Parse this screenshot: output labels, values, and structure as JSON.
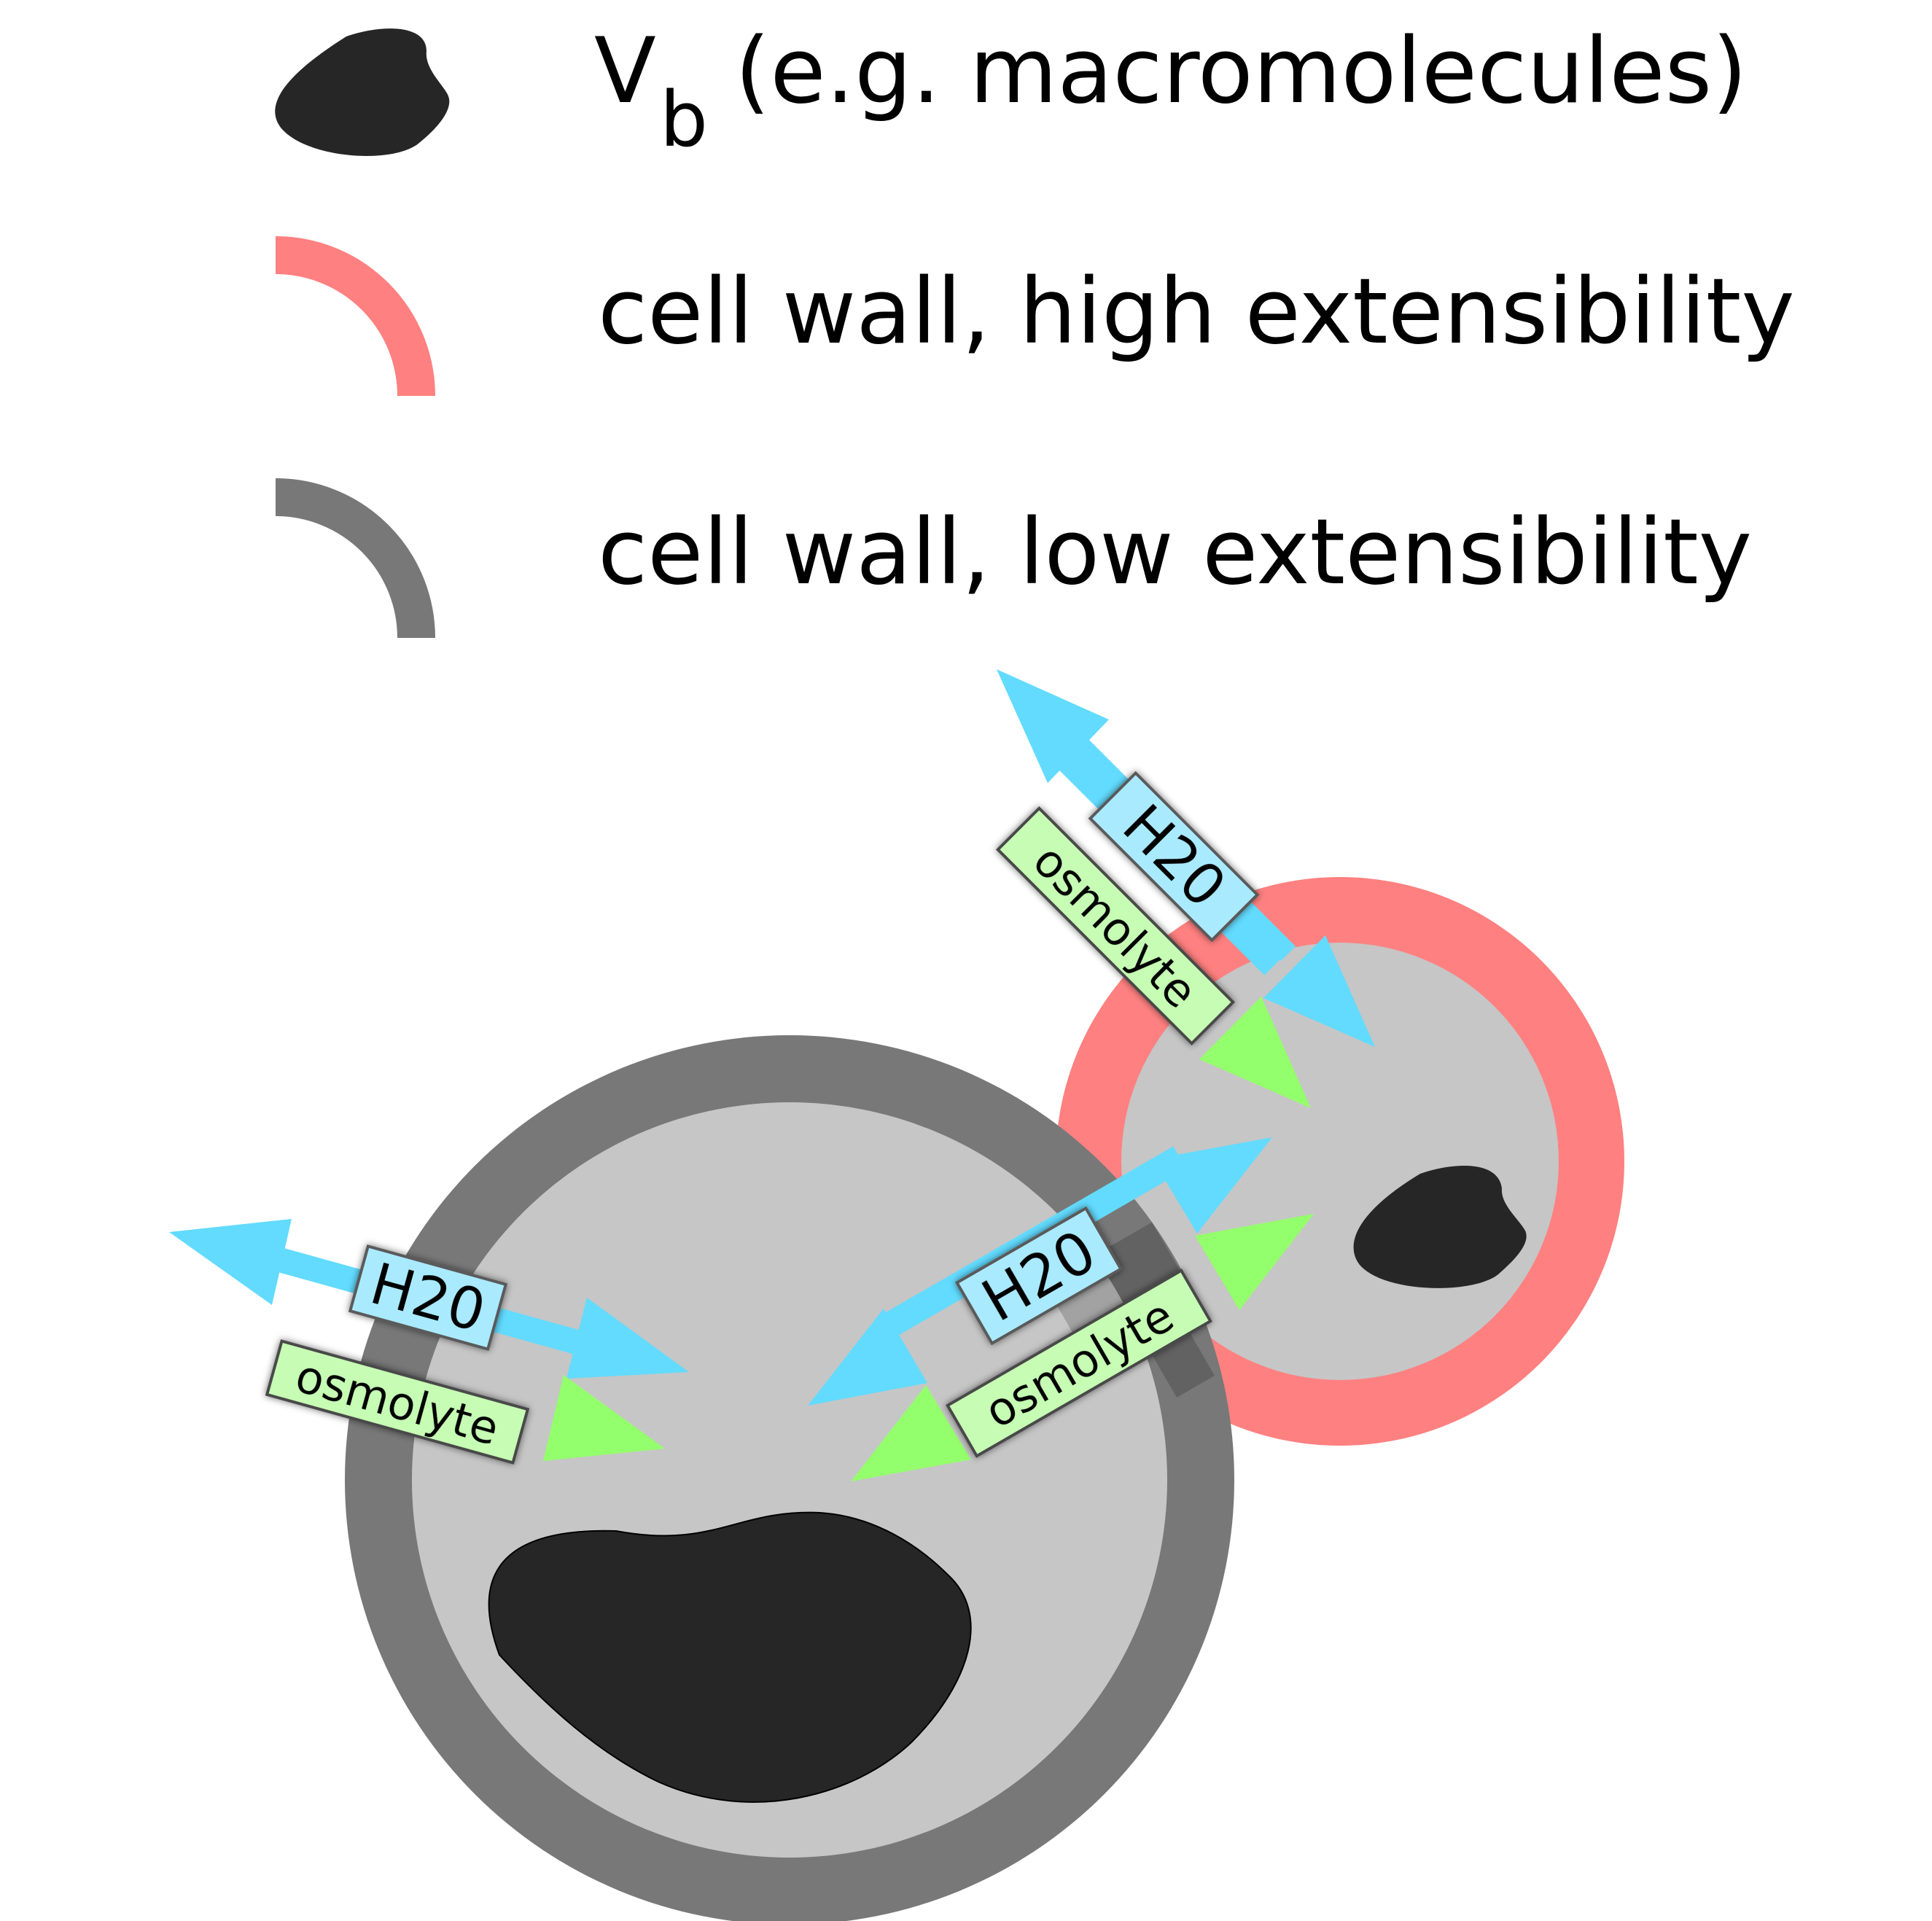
{
  "legend": {
    "macromolecule_symbol": "V",
    "macromolecule_subscript": "b",
    "macromolecule_label": "(e.g. macromolecules)",
    "high_ext_label": "cell wall, high extensibility",
    "low_ext_label": "cell wall, low extensibility"
  },
  "labels": {
    "h2o": "H20",
    "osmolyte": "osmolyte"
  },
  "colors": {
    "macromolecule": "#262626",
    "wall_high": "#ff8080",
    "wall_low": "#787878",
    "cytoplasm": "#c6c6c6",
    "water_arrow": "#62dbff",
    "osmolyte_arrow": "#94ff6c",
    "water_tag": "#aaeaff",
    "osmolyte_tag": "#c6fcb4"
  }
}
